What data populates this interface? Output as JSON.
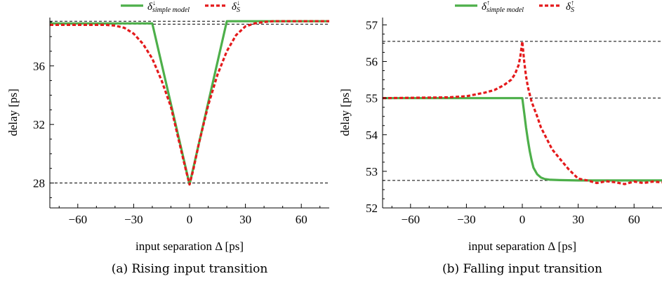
{
  "chart_data": [
    {
      "type": "line",
      "caption": "(a) Rising input transition",
      "xlabel": "input separation Δ [ps]",
      "ylabel": "delay [ps]",
      "xlim": [
        -75,
        75
      ],
      "ylim": [
        26.3,
        39.3
      ],
      "xticks": [
        -60,
        -30,
        0,
        30,
        60
      ],
      "xtick_labels": [
        "−60",
        "−30",
        "0",
        "30",
        "60"
      ],
      "yticks": [
        28,
        32,
        36
      ],
      "ytick_labels": [
        "28",
        "32",
        "36"
      ],
      "hlines": [
        28.0,
        38.85,
        39.05
      ],
      "legend": [
        {
          "symbol": "δ",
          "sup": "↓",
          "sub": "simple model"
        },
        {
          "symbol": "δ",
          "sup": "↓",
          "sub": "S"
        }
      ],
      "series": [
        {
          "color": "#4daf4a",
          "dash": "solid",
          "x": [
            -75,
            -20,
            0,
            20,
            75
          ],
          "y": [
            38.9,
            38.9,
            27.9,
            39.05,
            39.05
          ]
        },
        {
          "color": "#e41a1c",
          "dash": "dashed",
          "x": [
            -75,
            -45,
            -40,
            -35,
            -30,
            -25,
            -20,
            -15,
            -10,
            -5,
            -2,
            0,
            2,
            5,
            10,
            15,
            20,
            25,
            30,
            35,
            40,
            45,
            75
          ],
          "y": [
            38.8,
            38.8,
            38.75,
            38.6,
            38.2,
            37.5,
            36.5,
            35.0,
            33.2,
            30.5,
            28.9,
            27.9,
            28.9,
            30.7,
            33.3,
            35.4,
            37.0,
            38.1,
            38.7,
            38.9,
            39.0,
            39.05,
            39.05
          ]
        }
      ]
    },
    {
      "type": "line",
      "caption": "(b) Falling input transition",
      "xlabel": "input separation Δ [ps]",
      "ylabel": "delay [ps]",
      "xlim": [
        -75,
        75
      ],
      "ylim": [
        52,
        57.2
      ],
      "xticks": [
        -60,
        -30,
        0,
        30,
        60
      ],
      "xtick_labels": [
        "−60",
        "−30",
        "0",
        "30",
        "60"
      ],
      "yticks": [
        52,
        53,
        54,
        55,
        56,
        57
      ],
      "ytick_labels": [
        "52",
        "53",
        "54",
        "55",
        "56",
        "57"
      ],
      "hlines": [
        56.55,
        55.0,
        52.75
      ],
      "legend": [
        {
          "symbol": "δ",
          "sup": "↑",
          "sub": "simple model"
        },
        {
          "symbol": "δ",
          "sup": "↑",
          "sub": "S"
        }
      ],
      "series": [
        {
          "color": "#4daf4a",
          "dash": "solid",
          "x": [
            -75,
            -2,
            0,
            1,
            2,
            3,
            4,
            5,
            6,
            8,
            10,
            12,
            15,
            20,
            30,
            75
          ],
          "y": [
            55.0,
            55.0,
            55.0,
            54.6,
            54.2,
            53.85,
            53.55,
            53.3,
            53.1,
            52.92,
            52.83,
            52.79,
            52.77,
            52.76,
            52.75,
            52.75
          ]
        },
        {
          "color": "#e41a1c",
          "dash": "dashed",
          "x": [
            -75,
            -40,
            -30,
            -25,
            -20,
            -15,
            -10,
            -6,
            -4,
            -2,
            -1,
            0,
            1,
            2,
            3,
            5,
            8,
            10,
            13,
            16,
            20,
            25,
            30,
            35,
            40,
            45,
            50,
            55,
            60,
            65,
            70,
            75
          ],
          "y": [
            55.0,
            55.02,
            55.05,
            55.1,
            55.15,
            55.22,
            55.35,
            55.5,
            55.65,
            55.9,
            56.15,
            56.55,
            56.0,
            55.6,
            55.3,
            54.9,
            54.5,
            54.2,
            53.9,
            53.6,
            53.35,
            53.05,
            52.8,
            52.75,
            52.68,
            52.73,
            52.7,
            52.65,
            52.72,
            52.68,
            52.72,
            52.7
          ]
        }
      ]
    }
  ]
}
